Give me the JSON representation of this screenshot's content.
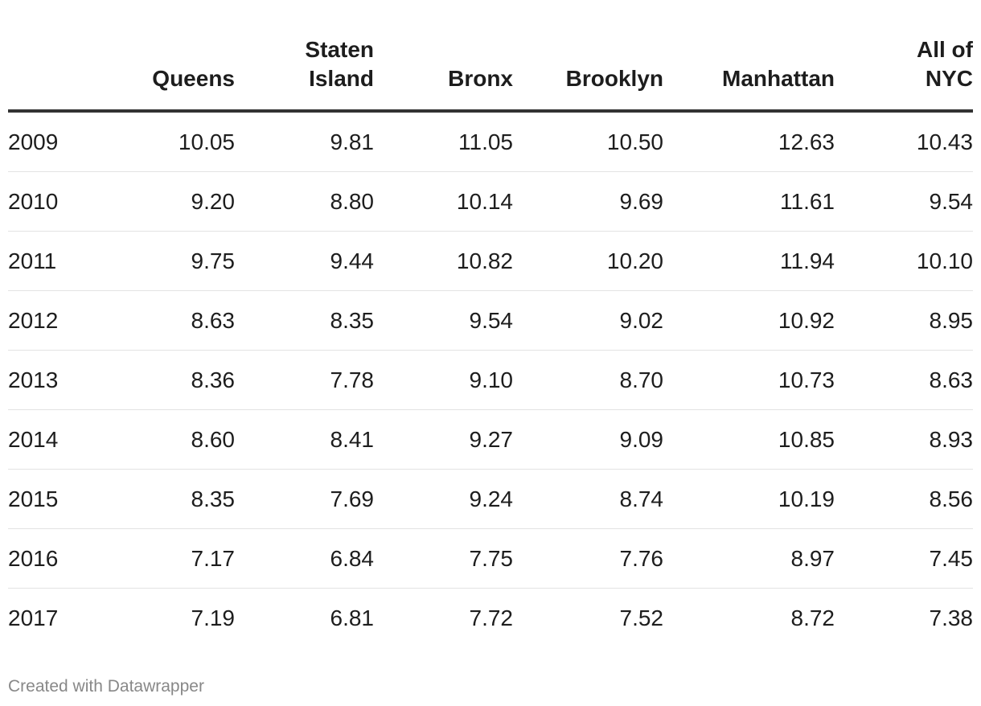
{
  "chart_data": {
    "type": "table",
    "columns": [
      "",
      "Queens",
      "Staten Island",
      "Bronx",
      "Brooklyn",
      "Manhattan",
      "All of NYC"
    ],
    "column_header_lines": [
      [
        ""
      ],
      [
        "Queens"
      ],
      [
        "Staten",
        "Island"
      ],
      [
        "Bronx"
      ],
      [
        "Brooklyn"
      ],
      [
        "Manhattan"
      ],
      [
        "All of",
        "NYC"
      ]
    ],
    "rows": [
      [
        "2009",
        "10.05",
        "9.81",
        "11.05",
        "10.50",
        "12.63",
        "10.43"
      ],
      [
        "2010",
        "9.20",
        "8.80",
        "10.14",
        "9.69",
        "11.61",
        "9.54"
      ],
      [
        "2011",
        "9.75",
        "9.44",
        "10.82",
        "10.20",
        "11.94",
        "10.10"
      ],
      [
        "2012",
        "8.63",
        "8.35",
        "9.54",
        "9.02",
        "10.92",
        "8.95"
      ],
      [
        "2013",
        "8.36",
        "7.78",
        "9.10",
        "8.70",
        "10.73",
        "8.63"
      ],
      [
        "2014",
        "8.60",
        "8.41",
        "9.27",
        "9.09",
        "10.85",
        "8.93"
      ],
      [
        "2015",
        "8.35",
        "7.69",
        "9.24",
        "8.74",
        "10.19",
        "8.56"
      ],
      [
        "2016",
        "7.17",
        "6.84",
        "7.75",
        "7.76",
        "8.97",
        "7.45"
      ],
      [
        "2017",
        "7.19",
        "6.81",
        "7.72",
        "7.52",
        "8.72",
        "7.38"
      ]
    ]
  },
  "footer": {
    "credit": "Created with Datawrapper"
  },
  "colors": {
    "text": "#1d1d1d",
    "header_rule": "#333333",
    "row_rule": "#e3e3e3",
    "footer_text": "#888888"
  }
}
